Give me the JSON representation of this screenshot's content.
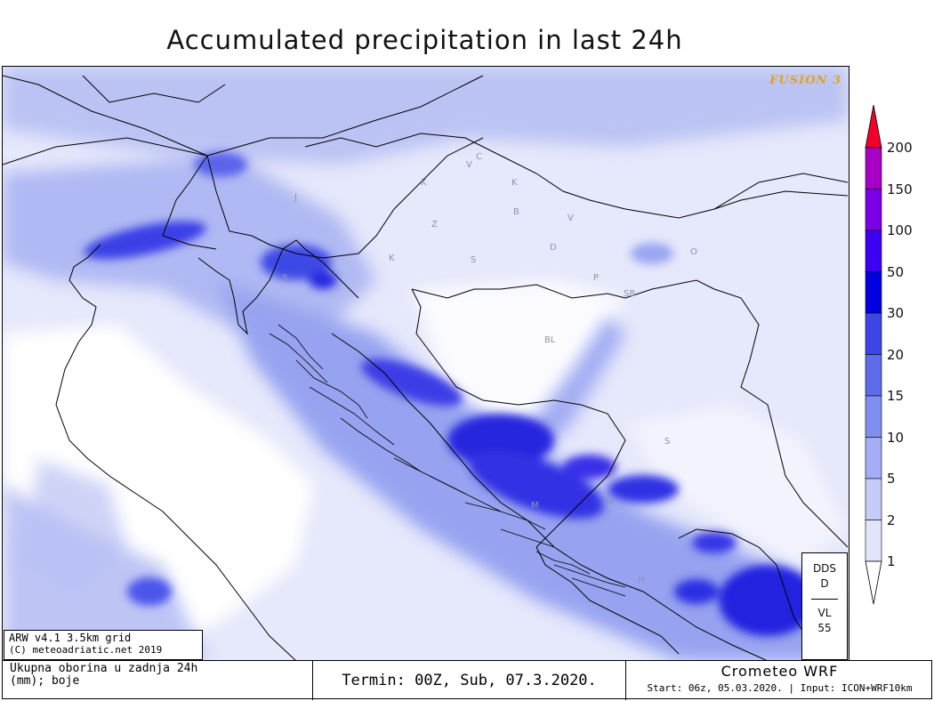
{
  "title": "Accumulated precipitation in last 24h",
  "brand": "FUSION 3",
  "model_info": {
    "line1": "ARW v4.1 3.5km grid",
    "line2": "(C) meteoadriatic.net 2019"
  },
  "corner_box": {
    "top1": "DDS",
    "top2": "D",
    "bottom1": "VL",
    "bottom2": "55"
  },
  "map_labels": [
    {
      "text": "V"
    },
    {
      "text": "C"
    },
    {
      "text": "K"
    },
    {
      "text": "K"
    },
    {
      "text": "J"
    },
    {
      "text": "Z"
    },
    {
      "text": "B"
    },
    {
      "text": "V"
    },
    {
      "text": "K"
    },
    {
      "text": "S"
    },
    {
      "text": "D"
    },
    {
      "text": "O"
    },
    {
      "text": "R"
    },
    {
      "text": "P"
    },
    {
      "text": "SB"
    },
    {
      "text": "BL"
    },
    {
      "text": "S"
    },
    {
      "text": "M"
    },
    {
      "text": "M"
    },
    {
      "text": "H"
    }
  ],
  "legend": {
    "ticks": [
      "200",
      "150",
      "100",
      "50",
      "30",
      "20",
      "15",
      "10",
      "5",
      "2",
      "1"
    ],
    "colors": [
      "#a900c7",
      "#7c00e6",
      "#3d00f5",
      "#0000e0",
      "#3c46e6",
      "#5c6ceb",
      "#7f8ff0",
      "#a3aef4",
      "#c5ccf8",
      "#e1e4fb"
    ],
    "max_arrow_color": "#f2002a",
    "min_arrow_color": "#ffffff"
  },
  "footer": {
    "desc_line1": "Ukupna oborina u zadnja 24h",
    "desc_line2": "(mm); boje",
    "termin": "Termin: 00Z, Sub, 07.3.2020.",
    "model_name": "Crometeo WRF",
    "start": "Start: 06z, 05.03.2020. | Input: ICON+WRF10km"
  }
}
